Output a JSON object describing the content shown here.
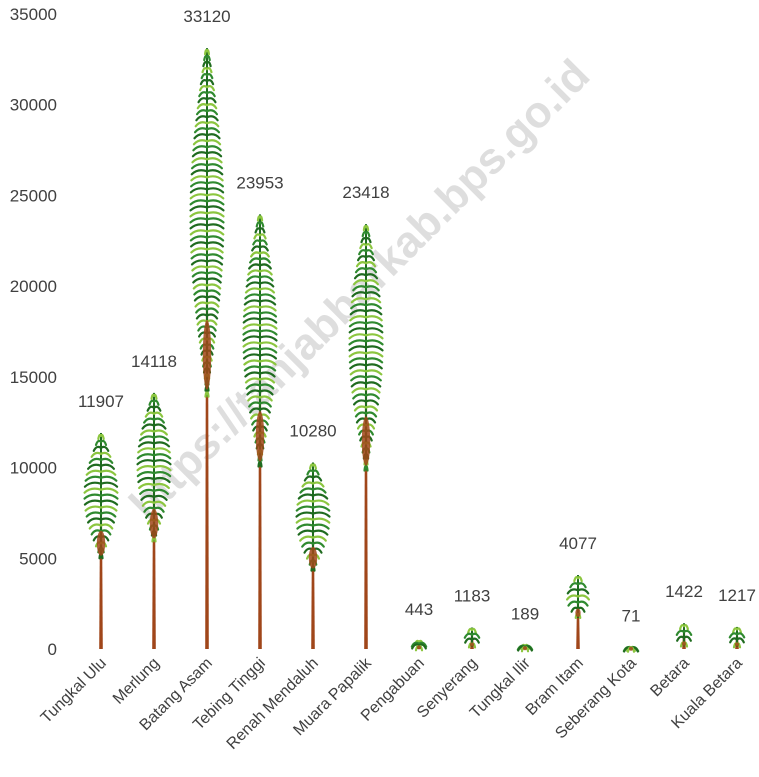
{
  "chart_data": {
    "type": "bar",
    "categories": [
      "Tungkal Ulu",
      "Merlung",
      "Batang Asam",
      "Tebing Tinggi",
      "Renah Mendaluh",
      "Muara Papalik",
      "Pengabuan",
      "Senyerang",
      "Tungkal Ilir",
      "Bram Itam",
      "Seberang Kota",
      "Betara",
      "Kuala Betara"
    ],
    "values": [
      11907,
      14118,
      33120,
      23953,
      10280,
      23418,
      443,
      1183,
      189,
      4077,
      71,
      1422,
      1217
    ],
    "ylim": [
      0,
      35000
    ],
    "yticks": [
      "0",
      "5000",
      "10000",
      "15000",
      "20000",
      "25000",
      "30000",
      "35000"
    ],
    "grid": false,
    "legend": "none",
    "bar_style": "palm-tree pictograph",
    "colors": {
      "trunk": "#a0461a",
      "frond_dark": "#1f6b1f",
      "frond_mid": "#2f8a2f",
      "frond_light": "#8cc63f",
      "text": "#404040"
    }
  },
  "watermark": "https://tanjabbarkab.bps.go.id"
}
